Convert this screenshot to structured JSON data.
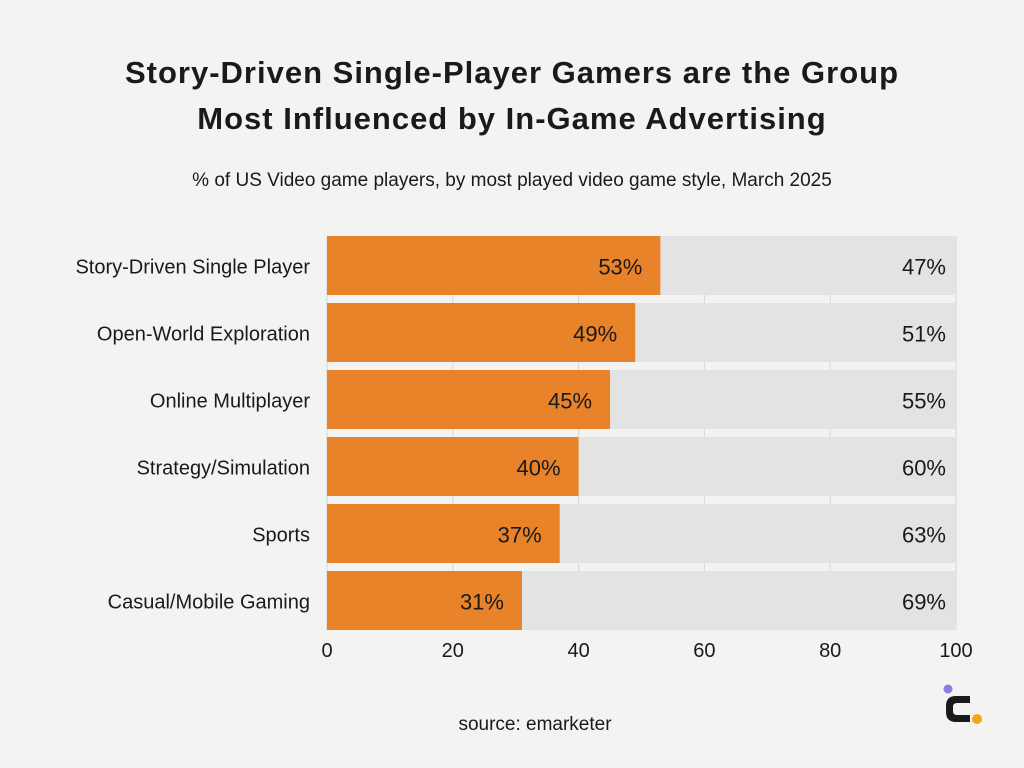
{
  "header": {
    "title_line1": "Story-Driven Single-Player Gamers are the Group",
    "title_line2": "Most Influenced by In-Game Advertising",
    "subtitle": "% of US Video game players, by most played video game style, March 2025"
  },
  "footer": {
    "source": "source: emarketer"
  },
  "colors": {
    "primary_bar": "#e8832a",
    "remainder_bar": "#e3e3e3",
    "background": "#f3f3f1",
    "logo_dot_orange": "#f5a31a",
    "logo_dot_purple": "#8f7ae8"
  },
  "chart_data": {
    "type": "bar",
    "orientation": "horizontal",
    "stacked": true,
    "title": "Story-Driven Single-Player Gamers are the Group Most Influenced by In-Game Advertising",
    "subtitle": "% of US Video game players, by most played video game style, March 2025",
    "categories": [
      "Story-Driven Single Player",
      "Open-World Exploration",
      "Online Multiplayer",
      "Strategy/Simulation",
      "Sports",
      "Casual/Mobile Gaming"
    ],
    "series": [
      {
        "values": [
          53,
          49,
          45,
          40,
          37,
          31
        ],
        "labels": [
          "53%",
          "49%",
          "45%",
          "40%",
          "37%",
          "31%"
        ],
        "color": "#e8832a"
      },
      {
        "values": [
          47,
          51,
          55,
          60,
          63,
          69
        ],
        "labels": [
          "47%",
          "51%",
          "55%",
          "60%",
          "63%",
          "69%"
        ],
        "color": "#e3e3e3"
      }
    ],
    "xlim": [
      0,
      100
    ],
    "xticks": [
      0,
      20,
      40,
      60,
      80,
      100
    ],
    "grid": true,
    "legend": "none"
  }
}
